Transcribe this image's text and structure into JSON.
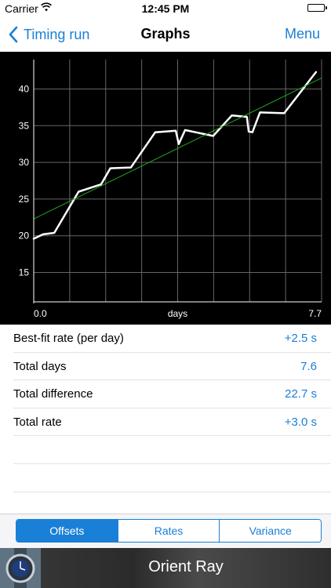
{
  "status_bar": {
    "carrier": "Carrier",
    "time": "12:45 PM"
  },
  "nav": {
    "back_label": "Timing run",
    "title": "Graphs",
    "menu_label": "Menu"
  },
  "chart_data": {
    "type": "line",
    "xlabel": "days",
    "x_tick_labels": [
      "0.0",
      "7.7"
    ],
    "xlim": [
      0,
      7.7
    ],
    "ylim": [
      11,
      44
    ],
    "y_ticks": [
      15,
      20,
      25,
      30,
      35,
      40
    ],
    "grid": true,
    "series": [
      {
        "color": "#ffffff",
        "points": [
          [
            0,
            19.6
          ],
          [
            0.25,
            20.2
          ],
          [
            0.55,
            20.4
          ],
          [
            1.2,
            26.0
          ],
          [
            1.8,
            27.0
          ],
          [
            2.05,
            29.2
          ],
          [
            2.6,
            29.3
          ],
          [
            3.25,
            34.1
          ],
          [
            3.8,
            34.3
          ],
          [
            3.88,
            32.5
          ],
          [
            4.05,
            34.4
          ],
          [
            4.8,
            33.6
          ],
          [
            5.3,
            36.4
          ],
          [
            5.7,
            36.2
          ],
          [
            5.75,
            34.2
          ],
          [
            5.85,
            34.1
          ],
          [
            6.05,
            36.8
          ],
          [
            6.7,
            36.7
          ],
          [
            7.55,
            42.3
          ]
        ]
      },
      {
        "color": "#1fa81f",
        "points": [
          [
            0,
            22.3
          ],
          [
            7.7,
            41.5
          ]
        ]
      }
    ]
  },
  "stats": [
    {
      "label": "Best-fit rate (per day)",
      "value": "+2.5 s"
    },
    {
      "label": "Total days",
      "value": "7.6"
    },
    {
      "label": "Total difference",
      "value": "22.7 s"
    },
    {
      "label": "Total rate",
      "value": "+3.0 s"
    }
  ],
  "segments": [
    {
      "label": "Offsets",
      "active": true
    },
    {
      "label": "Rates",
      "active": false
    },
    {
      "label": "Variance",
      "active": false
    }
  ],
  "banner": {
    "text": "Orient Ray"
  },
  "colors": {
    "accent": "#1a7fd6",
    "chart_bg": "#000000",
    "fit_line": "#1fa81f"
  }
}
